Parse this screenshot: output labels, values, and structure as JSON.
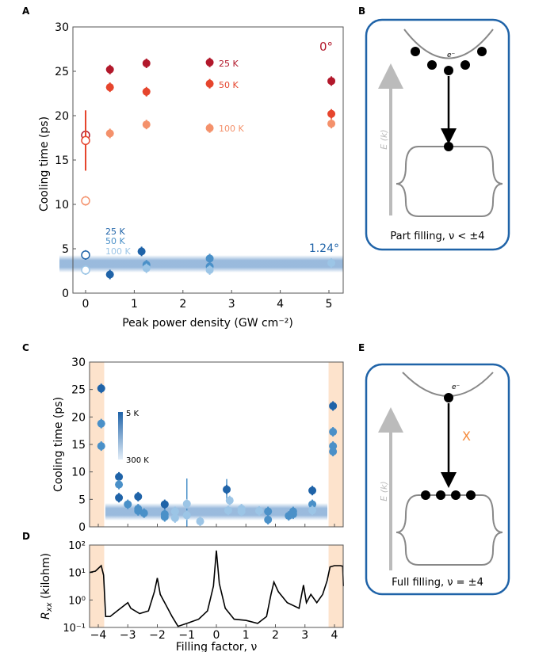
{
  "panel_labels": {
    "a": "A",
    "b": "B",
    "c": "C",
    "d": "D",
    "e": "E"
  },
  "colors": {
    "k25": "#b2182b",
    "k50": "#e6452d",
    "k100": "#f4916b",
    "blue_dark": "#1f63a8",
    "blue_mid": "#4a90c8",
    "blue_light": "#9cc5e6",
    "shade": "#fde3cc",
    "band": "#8fb3d9"
  },
  "chart_data": [
    {
      "type": "scatter",
      "panel": "A",
      "xlabel": "Peak power density (GW cm⁻²)",
      "ylabel": "Cooling time (ps)",
      "xlim": [
        -0.25,
        5.3
      ],
      "ylim": [
        0,
        30
      ],
      "xticks": [
        "0",
        "1",
        "2",
        "3",
        "4",
        "5"
      ],
      "yticks": [
        "0",
        "5",
        "10",
        "15",
        "20",
        "25",
        "30"
      ],
      "annotations": {
        "angle_0": "0°",
        "angle_124": "1.24°"
      },
      "band_y": 3.0,
      "series": [
        {
          "name": "25 K",
          "group": "0°",
          "color": "k25",
          "points": [
            [
              0.5,
              25.2
            ],
            [
              1.25,
              25.9
            ],
            [
              2.55,
              26.0
            ],
            [
              5.05,
              23.9
            ]
          ],
          "open": [
            [
              0,
              17.8
            ]
          ]
        },
        {
          "name": "50 K",
          "group": "0°",
          "color": "k50",
          "points": [
            [
              0.5,
              23.2
            ],
            [
              1.25,
              22.7
            ],
            [
              2.55,
              23.6
            ],
            [
              5.05,
              20.2
            ]
          ],
          "open": [
            [
              0,
              17.2
            ]
          ],
          "errbar": [
            0,
            13.8,
            20.6
          ]
        },
        {
          "name": "100 K",
          "group": "0°",
          "color": "k100",
          "points": [
            [
              0.5,
              18.0
            ],
            [
              1.25,
              19.0
            ],
            [
              2.55,
              18.6
            ],
            [
              5.05,
              19.1
            ]
          ],
          "open": [
            [
              0,
              10.4
            ]
          ]
        },
        {
          "name": "25 K",
          "group": "1.24°",
          "color": "blue_dark",
          "points": [
            [
              0.5,
              2.1
            ],
            [
              1.15,
              4.7
            ]
          ],
          "open": [
            [
              0,
              4.3
            ]
          ]
        },
        {
          "name": "50 K",
          "group": "1.24°",
          "color": "blue_mid",
          "points": [
            [
              1.25,
              3.2
            ],
            [
              2.55,
              3.9
            ],
            [
              2.55,
              3.0
            ]
          ],
          "open": []
        },
        {
          "name": "100 K",
          "group": "1.24°",
          "color": "blue_light",
          "points": [
            [
              1.25,
              2.8
            ],
            [
              2.55,
              2.6
            ],
            [
              5.05,
              3.4
            ]
          ],
          "open": [
            [
              0,
              2.6
            ]
          ]
        }
      ]
    },
    {
      "type": "scatter",
      "panel": "C",
      "ylabel": "Cooling time (ps)",
      "xlim": [
        -4.3,
        4.3
      ],
      "ylim": [
        0,
        30
      ],
      "yticks": [
        "0",
        "5",
        "10",
        "15",
        "20",
        "25",
        "30"
      ],
      "colorbar": {
        "top": "5 K",
        "bottom": "300 K"
      },
      "band_y": 3.4,
      "shaded_regions": [
        [
          -4.3,
          -3.8
        ],
        [
          3.8,
          4.3
        ]
      ],
      "points": [
        [
          -3.9,
          25.2,
          "blue_dark"
        ],
        [
          -3.9,
          18.8,
          "blue_mid"
        ],
        [
          -3.9,
          14.7,
          "blue_mid"
        ],
        [
          -3.3,
          9.1,
          "blue_dark"
        ],
        [
          -3.3,
          7.7,
          "blue_mid"
        ],
        [
          -3.3,
          5.3,
          "blue_dark"
        ],
        [
          -3.0,
          4.1,
          "blue_mid"
        ],
        [
          -2.65,
          5.5,
          "blue_dark"
        ],
        [
          -2.65,
          3.3,
          "blue_mid"
        ],
        [
          -2.65,
          2.9,
          "blue_mid"
        ],
        [
          -2.45,
          2.5,
          "blue_mid"
        ],
        [
          -1.75,
          4.1,
          "blue_dark"
        ],
        [
          -1.75,
          2.3,
          "blue_mid"
        ],
        [
          -1.75,
          1.8,
          "blue_mid"
        ],
        [
          -1.4,
          2.8,
          "blue_light"
        ],
        [
          -1.4,
          1.6,
          "blue_light"
        ],
        [
          -1.0,
          4.2,
          "blue_light"
        ],
        [
          -1.0,
          2.1,
          "blue_light"
        ],
        [
          -0.55,
          1.0,
          "blue_light"
        ],
        [
          0.35,
          6.8,
          "blue_dark"
        ],
        [
          0.45,
          4.8,
          "blue_light"
        ],
        [
          0.4,
          3.0,
          "blue_light"
        ],
        [
          0.85,
          3.3,
          "blue_light"
        ],
        [
          0.85,
          2.8,
          "blue_light"
        ],
        [
          1.45,
          2.9,
          "blue_light"
        ],
        [
          1.75,
          2.8,
          "blue_mid"
        ],
        [
          1.75,
          1.3,
          "blue_mid"
        ],
        [
          2.45,
          2.0,
          "blue_mid"
        ],
        [
          2.6,
          2.3,
          "blue_mid"
        ],
        [
          2.6,
          2.8,
          "blue_mid"
        ],
        [
          3.25,
          6.6,
          "blue_dark"
        ],
        [
          3.25,
          4.1,
          "blue_mid"
        ],
        [
          3.25,
          3.0,
          "blue_light"
        ],
        [
          3.95,
          22.0,
          "blue_dark"
        ],
        [
          3.95,
          17.3,
          "blue_mid"
        ],
        [
          3.95,
          14.7,
          "blue_mid"
        ],
        [
          3.95,
          13.7,
          "blue_mid"
        ]
      ]
    },
    {
      "type": "line",
      "panel": "D",
      "xlabel": "Filling factor, ν",
      "ylabel": "R_xx (kilohm)",
      "ylabel_main": "R",
      "ylabel_sub": "xx",
      "ylabel_unit": " (kilohm)",
      "yscale": "log",
      "xlim": [
        -4.3,
        4.3
      ],
      "ylim": [
        0.1,
        100
      ],
      "xticks": [
        "−4",
        "−3",
        "−2",
        "−1",
        "0",
        "1",
        "2",
        "3",
        "4"
      ],
      "yticks": [
        "10⁻¹",
        "10⁰",
        "10¹",
        "10²"
      ],
      "x": [
        -4.3,
        -4.1,
        -3.9,
        -3.82,
        -3.75,
        -3.6,
        -3.3,
        -3.0,
        -2.9,
        -2.6,
        -2.3,
        -2.1,
        -2.0,
        -1.9,
        -1.7,
        -1.5,
        -1.3,
        -1.0,
        -0.6,
        -0.3,
        -0.1,
        0,
        0.1,
        0.3,
        0.6,
        1.0,
        1.4,
        1.7,
        1.85,
        1.95,
        2.1,
        2.4,
        2.8,
        2.95,
        3.05,
        3.2,
        3.4,
        3.6,
        3.75,
        3.85,
        4.0,
        4.2,
        4.28,
        4.3
      ],
      "y": [
        10,
        11.2,
        17.8,
        8,
        0.25,
        0.25,
        0.45,
        0.8,
        0.5,
        0.32,
        0.4,
        2,
        6.3,
        1.6,
        0.63,
        0.25,
        0.11,
        0.14,
        0.2,
        0.4,
        3.2,
        63,
        4,
        0.5,
        0.2,
        0.18,
        0.14,
        0.25,
        1.6,
        4.5,
        2,
        0.8,
        0.5,
        3.5,
        0.8,
        1.6,
        0.8,
        1.6,
        5,
        16,
        17.8,
        17.8,
        17,
        3.2
      ]
    }
  ],
  "diagram_b": {
    "electron": "e⁻",
    "axis": "E (k)",
    "caption": "Part filling, ν < ±4"
  },
  "diagram_e": {
    "electron": "e⁻",
    "axis": "E (k)",
    "blocked": "X",
    "caption": "Full filling, ν = ±4"
  }
}
